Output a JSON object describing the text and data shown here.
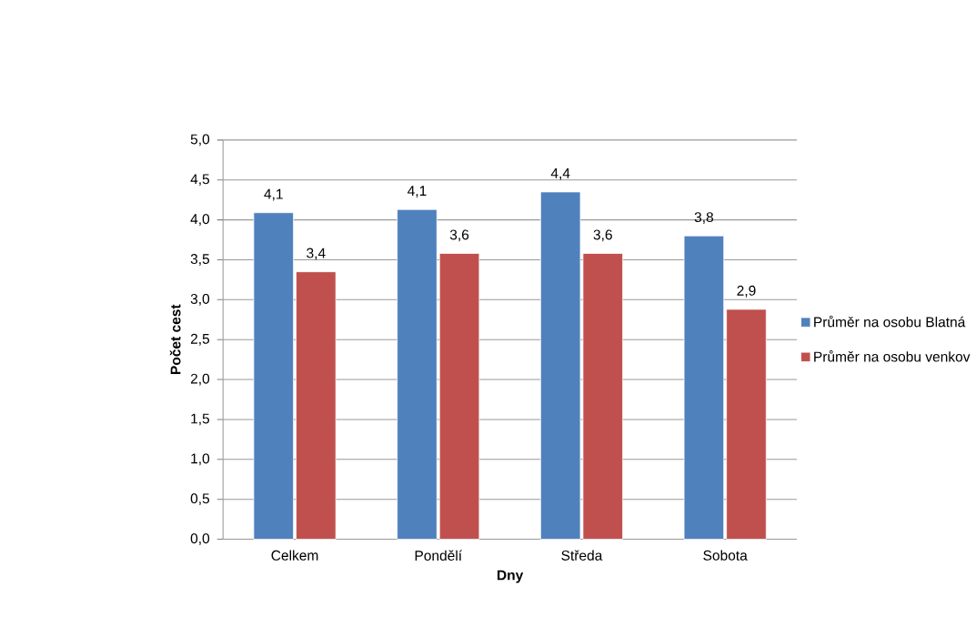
{
  "chart_data": {
    "type": "bar",
    "xlabel": "Dny",
    "ylabel": "Počet cest",
    "categories": [
      "Celkem",
      "Pondělí",
      "Středa",
      "Sobota"
    ],
    "series": [
      {
        "name": "Průměr na osobu Blatná",
        "color": "#4f81bd",
        "values": [
          4.09,
          4.13,
          4.35,
          3.8
        ],
        "value_labels": [
          "4,1",
          "4,1",
          "4,4",
          "3,8"
        ]
      },
      {
        "name": "Průměr na osobu venkov",
        "color": "#c0504d",
        "values": [
          3.35,
          3.58,
          3.58,
          2.88
        ],
        "value_labels": [
          "3,4",
          "3,6",
          "3,6",
          "2,9"
        ]
      }
    ],
    "ylim": [
      0,
      5
    ],
    "yticks": [
      {
        "value": 0,
        "label": "0,0"
      },
      {
        "value": 0.5,
        "label": "0,5"
      },
      {
        "value": 1,
        "label": "1,0"
      },
      {
        "value": 1.5,
        "label": "1,5"
      },
      {
        "value": 2,
        "label": "2,0"
      },
      {
        "value": 2.5,
        "label": "2,5"
      },
      {
        "value": 3,
        "label": "3,0"
      },
      {
        "value": 3.5,
        "label": "3,5"
      },
      {
        "value": 4,
        "label": "4,0"
      },
      {
        "value": 4.5,
        "label": "4,5"
      },
      {
        "value": 5,
        "label": "5,0"
      }
    ],
    "grid": "y",
    "legend": "right"
  }
}
